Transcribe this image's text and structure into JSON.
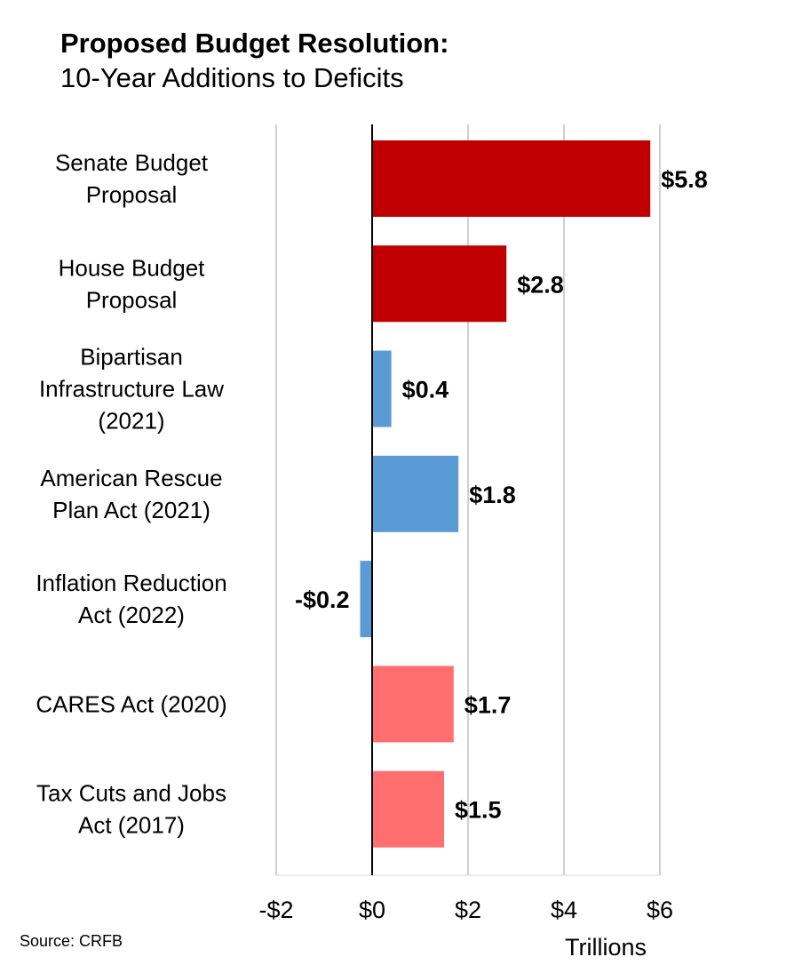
{
  "chart_data": {
    "type": "bar",
    "orientation": "horizontal",
    "title": "Proposed Budget Resolution:",
    "subtitle": "10-Year Additions to Deficits",
    "xlabel": "Trillions",
    "xlim": [
      -2,
      6
    ],
    "xticks": [
      {
        "value": -2,
        "label": "-$2"
      },
      {
        "value": 0,
        "label": "$0"
      },
      {
        "value": 2,
        "label": "$2"
      },
      {
        "value": 4,
        "label": "$4"
      },
      {
        "value": 6,
        "label": "$6"
      }
    ],
    "grid": true,
    "bars": [
      {
        "category": [
          "Senate Budget",
          "Proposal"
        ],
        "value": 5.8,
        "label": "$5.8",
        "color": "#c00000"
      },
      {
        "category": [
          "House Budget",
          "Proposal"
        ],
        "value": 2.8,
        "label": "$2.8",
        "color": "#c00000"
      },
      {
        "category": [
          "Bipartisan",
          "Infrastructure Law",
          "(2021)"
        ],
        "value": 0.4,
        "label": "$0.4",
        "color": "#5b9bd5"
      },
      {
        "category": [
          "American Rescue",
          "Plan Act (2021)"
        ],
        "value": 1.8,
        "label": "$1.8",
        "color": "#5b9bd5"
      },
      {
        "category": [
          "Inflation Reduction",
          "Act (2022)"
        ],
        "value": -0.25,
        "label": "-$0.2",
        "color": "#5b9bd5"
      },
      {
        "category": [
          "CARES Act (2020)"
        ],
        "value": 1.7,
        "label": "$1.7",
        "color": "#ff6f6f"
      },
      {
        "category": [
          "Tax Cuts and Jobs",
          "Act (2017)"
        ],
        "value": 1.5,
        "label": "$1.5",
        "color": "#ff6f6f"
      }
    ]
  },
  "source": "Source: CRFB"
}
